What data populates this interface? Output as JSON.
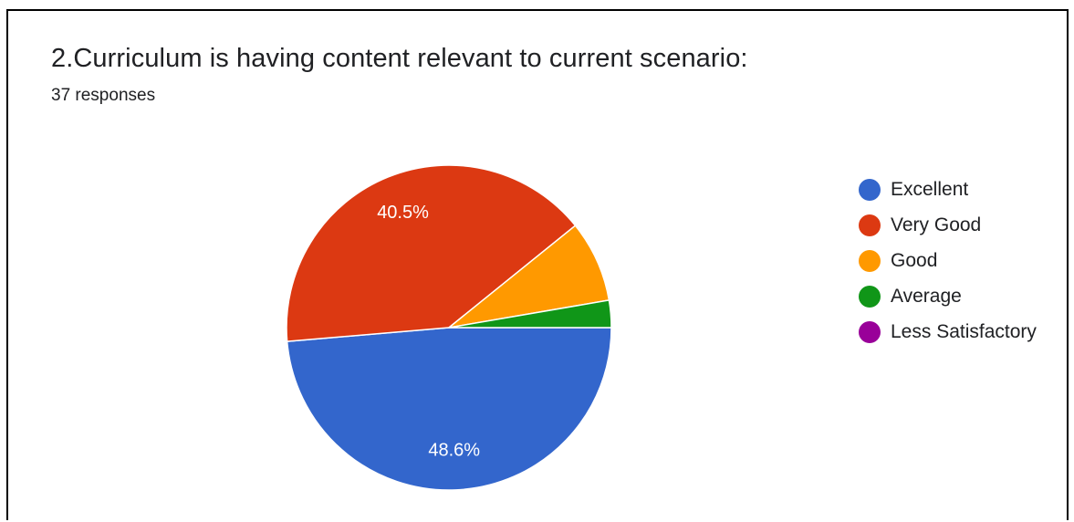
{
  "header": {
    "title": "2.Curriculum is having content relevant to current scenario:",
    "responses": "37 responses"
  },
  "chart_data": {
    "type": "pie",
    "title": "2.Curriculum is having content relevant to current scenario:",
    "subtitle": "37 responses",
    "total": 37,
    "categories": [
      "Excellent",
      "Very Good",
      "Good",
      "Average",
      "Less Satisfactory"
    ],
    "values": [
      18,
      15,
      3,
      1,
      0
    ],
    "percent_labels": [
      "48.6%",
      "40.5%",
      "",
      "",
      ""
    ],
    "colors": [
      "#3366cc",
      "#dc3912",
      "#ff9900",
      "#109618",
      "#990099"
    ],
    "legend": "right"
  }
}
